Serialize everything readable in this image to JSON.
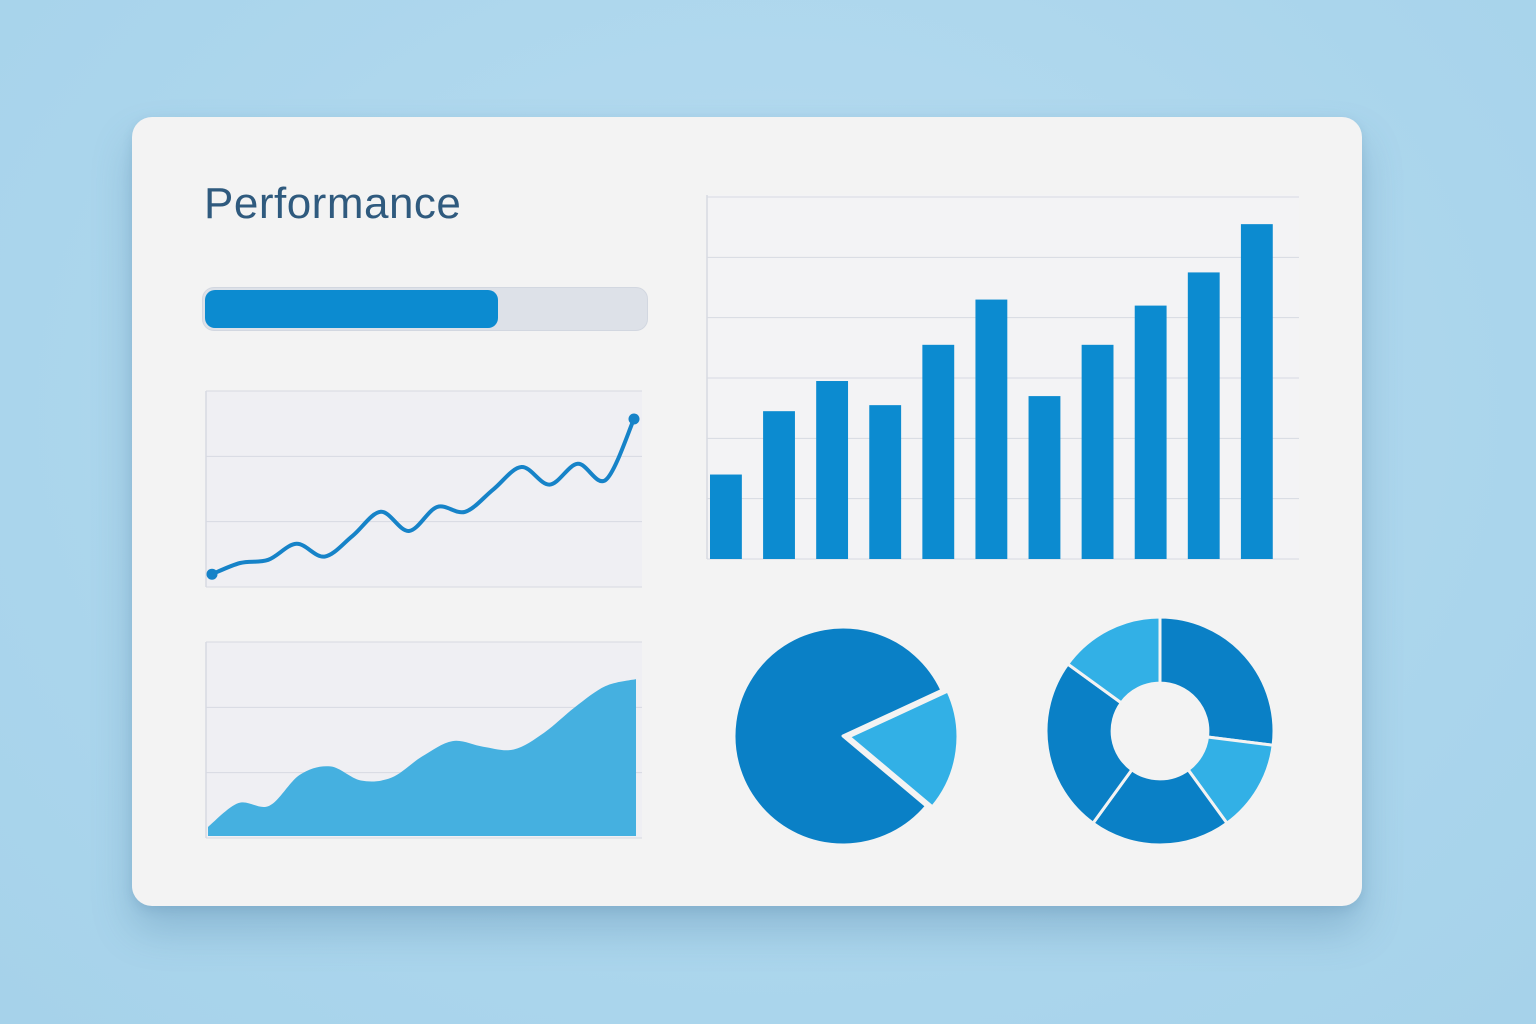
{
  "card": {
    "title": "Performance"
  },
  "progress": {
    "value": 0.67
  },
  "colors": {
    "background": "#aad5ec",
    "card": "#f3f3f3",
    "title": "#2f5a7e",
    "primary": "#0c8bd0",
    "light": "#32b0e6",
    "area": "#45b0e0",
    "track": "#dde1e8",
    "grid": "#d7dae2"
  },
  "chart_data": [
    {
      "type": "line",
      "x": [
        0,
        1,
        2,
        3,
        4,
        5,
        6,
        7,
        8,
        9,
        10,
        11,
        12,
        13,
        14,
        15
      ],
      "values": [
        3,
        10,
        12,
        22,
        14,
        27,
        42,
        30,
        45,
        42,
        56,
        70,
        59,
        72,
        62,
        100
      ],
      "ylim": [
        0,
        110
      ],
      "grid": true
    },
    {
      "type": "area",
      "x": [
        0,
        1,
        2,
        3,
        4,
        5,
        6,
        7,
        8,
        9,
        10,
        11,
        12,
        13,
        14
      ],
      "values": [
        5,
        22,
        20,
        42,
        48,
        38,
        40,
        55,
        66,
        62,
        60,
        72,
        90,
        105,
        110
      ],
      "ylim": [
        0,
        125
      ],
      "grid": true
    },
    {
      "type": "bar",
      "categories": [
        "1",
        "2",
        "3",
        "4",
        "5",
        "6",
        "7",
        "8",
        "9",
        "10",
        "11"
      ],
      "values": [
        28,
        49,
        59,
        51,
        71,
        86,
        54,
        71,
        84,
        95,
        111
      ],
      "ylim": [
        0,
        120
      ],
      "grid": true
    },
    {
      "type": "pie",
      "values": [
        82,
        18
      ],
      "colors": [
        "#0a80c6",
        "#32b0e6"
      ]
    },
    {
      "type": "pie",
      "donut": true,
      "values": [
        27,
        13,
        20,
        25,
        15
      ],
      "colors": [
        "#0a80c6",
        "#32b0e6",
        "#0a80c6",
        "#0a80c6",
        "#32b0e6"
      ]
    }
  ]
}
